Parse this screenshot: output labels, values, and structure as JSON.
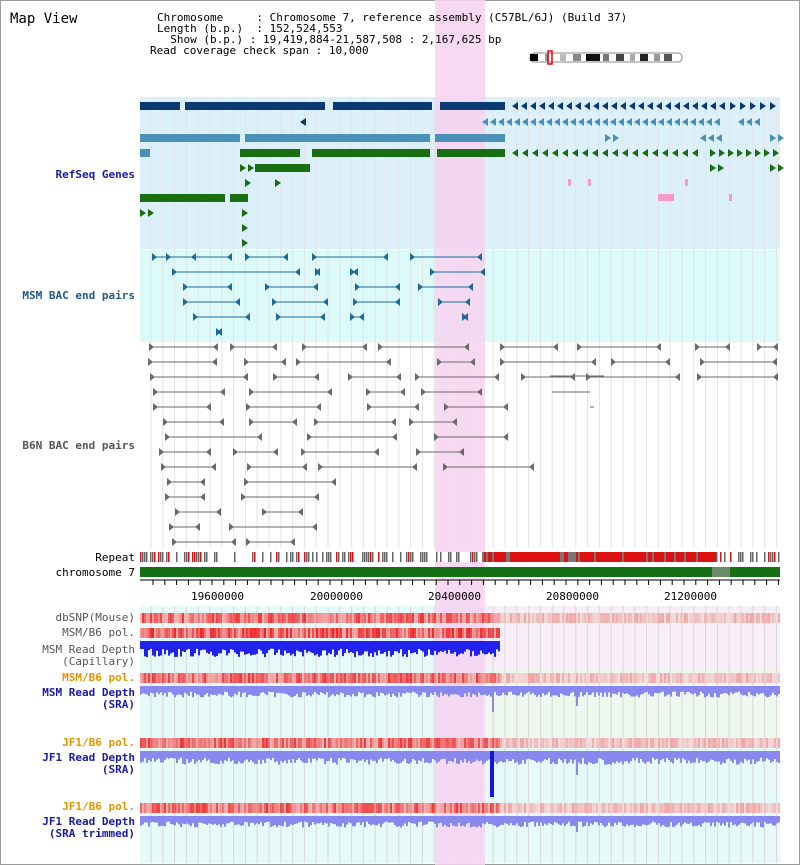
{
  "title": "Map View",
  "header": {
    "chromosome_key": "Chromosome",
    "chromosome_value": "Chromosome 7, reference assembly (C57BL/6J) (Build 37)",
    "length_key": "Length (b.p.)",
    "length_value": "152,524,553",
    "show_key": "Show (b.p.)",
    "show_value": "19,419,884-21,587,508 : 2,167,625 bp",
    "coverage_key": "Read coverage check span",
    "coverage_value": "10,000"
  },
  "tracks": {
    "refseq": "RefSeq Genes",
    "msm_bac": "MSM BAC end pairs",
    "b6n_bac": "B6N BAC end pairs",
    "repeat": "Repeat",
    "chromosome": "chromosome 7",
    "dbsnp": "dbSNP(Mouse)",
    "msm_b6_pol_1": "MSM/B6 pol.",
    "msm_depth_cap_1": "MSM Read Depth",
    "msm_depth_cap_2": "(Capillary)",
    "msm_b6_pol_2": "MSM/B6 pol.",
    "msm_depth_sra_1": "MSM Read Depth",
    "msm_depth_sra_2": "(SRA)",
    "jf1_b6_pol_1": "JF1/B6 pol.",
    "jf1_depth_sra_1": "JF1 Read Depth",
    "jf1_depth_sra_2": "(SRA)",
    "jf1_b6_pol_2": "JF1/B6 pol.",
    "jf1_depth_trim_1": "JF1 Read Depth",
    "jf1_depth_trim_2": "(SRA trimmed)"
  },
  "axis": {
    "ticks": [
      "19600000",
      "20000000",
      "20400000",
      "20800000",
      "21200000"
    ]
  },
  "colors": {
    "refseq_bg": "#dcf0fb",
    "bac_bg": "#dcfafa",
    "highlight": "#f7d2f0",
    "gene_navy": "#0a3a73",
    "gene_steel": "#4a90b8",
    "gene_green": "#1a6e12",
    "chromosome": "#157015",
    "snp_red": "#e03a3a",
    "depth_blue": "#2222ee",
    "depth_light": "#8888ee",
    "bac_teal": "#1f6a99",
    "bac_grey": "#6a6a6a"
  }
}
